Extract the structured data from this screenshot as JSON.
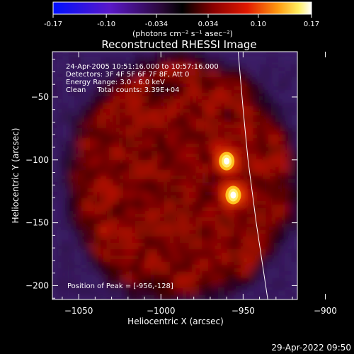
{
  "colorbar": {
    "ticks": [
      "-0.17",
      "-0.10",
      "-0.034",
      "0.034",
      "0.10",
      "0.17"
    ],
    "tick_values": [
      -0.17,
      -0.1,
      -0.034,
      0.034,
      0.1,
      0.17
    ],
    "range": [
      -0.17,
      0.17
    ],
    "unit_label": "(photons cm⁻² s⁻¹ asec⁻²)"
  },
  "annotations": {
    "time_range": "24-Apr-2005 10:51:16.000 to 10:57:16.000",
    "detectors": "Detectors: 3F 4F 5F 6F 7F 8F, Att 0",
    "energy": "Energy Range: 3.0 - 6.0 keV",
    "clean": "Clean     Total counts: 3.39E+04",
    "peak": "Position of Peak = [-956,-128]"
  },
  "timestamp": "29-Apr-2022 09:50",
  "chart_data": {
    "type": "heatmap",
    "title": "Reconstructed RHESSI Image",
    "xlabel": "Heliocentric X (arcsec)",
    "ylabel": "Heliocentric Y (arcsec)",
    "xlim": [
      -1066,
      -917
    ],
    "ylim": [
      -211,
      -14
    ],
    "x_ticks": [
      -1050,
      -1000,
      -950,
      -900
    ],
    "x_tick_labels": [
      "−1050",
      "−1000",
      "−950",
      "−900"
    ],
    "y_ticks": [
      -50,
      -100,
      -150,
      -200
    ],
    "y_tick_labels": [
      "−50",
      "−100",
      "−150",
      "−200"
    ],
    "colormap": "blue-purple-black-red-yellow-white",
    "sources": [
      {
        "x": -960,
        "y": -101,
        "value": 0.15
      },
      {
        "x": -956,
        "y": -128,
        "value": 0.17
      }
    ],
    "limb_line": [
      {
        "x": -953,
        "y": -14
      },
      {
        "x": -950,
        "y": -60
      },
      {
        "x": -947,
        "y": -100
      },
      {
        "x": -942,
        "y": -150
      },
      {
        "x": -935,
        "y": -211
      }
    ],
    "peak": {
      "x": -956,
      "y": -128
    }
  }
}
